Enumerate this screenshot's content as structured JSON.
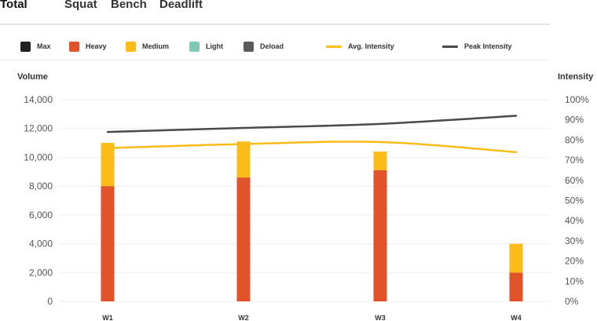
{
  "tabs": [
    {
      "label": "Total",
      "active": true
    },
    {
      "label": "Squat",
      "active": false
    },
    {
      "label": "Bench",
      "active": false
    },
    {
      "label": "Deadlift",
      "active": false
    }
  ],
  "legend": [
    {
      "label": "Max",
      "kind": "swatch",
      "color": "#222222"
    },
    {
      "label": "Heavy",
      "kind": "swatch",
      "color": "#e0532b"
    },
    {
      "label": "Medium",
      "kind": "swatch",
      "color": "#fbbc1a"
    },
    {
      "label": "Light",
      "kind": "swatch",
      "color": "#7fcab2"
    },
    {
      "label": "Deload",
      "kind": "swatch",
      "color": "#5b5b5f"
    },
    {
      "label": "Avg. Intensity",
      "kind": "line",
      "color": "#fbbc1a"
    },
    {
      "label": "Peak Intensity",
      "kind": "line",
      "color": "#4a4a4a"
    }
  ],
  "chart_data": {
    "type": "bar",
    "stacked": true,
    "categories": [
      "W1",
      "W2",
      "W3",
      "W4"
    ],
    "ylabel": "Volume",
    "ylabel_right": "Intensity",
    "ylim": [
      0,
      14000
    ],
    "yticks": [
      "0",
      "2,000",
      "4,000",
      "6,000",
      "8,000",
      "10,000",
      "12,000",
      "14,000"
    ],
    "ylim_right": [
      0,
      100
    ],
    "yticks_right": [
      "0%",
      "10%",
      "20%",
      "30%",
      "40%",
      "50%",
      "60%",
      "70%",
      "80%",
      "90%",
      "100%"
    ],
    "grid": true,
    "legend_position": "top",
    "series": [
      {
        "name": "Heavy",
        "kind": "bar",
        "color": "#e0532b",
        "values": [
          8000,
          8600,
          9100,
          2000
        ]
      },
      {
        "name": "Medium",
        "kind": "bar",
        "color": "#fbbc1a",
        "values": [
          3000,
          2500,
          1300,
          2000
        ]
      },
      {
        "name": "Avg. Intensity",
        "kind": "line",
        "axis": "right",
        "color": "#fbbc1a",
        "values": [
          76,
          78,
          79,
          74
        ]
      },
      {
        "name": "Peak Intensity",
        "kind": "line",
        "axis": "right",
        "color": "#4a4a4a",
        "values": [
          84,
          86,
          88,
          92
        ]
      }
    ]
  }
}
